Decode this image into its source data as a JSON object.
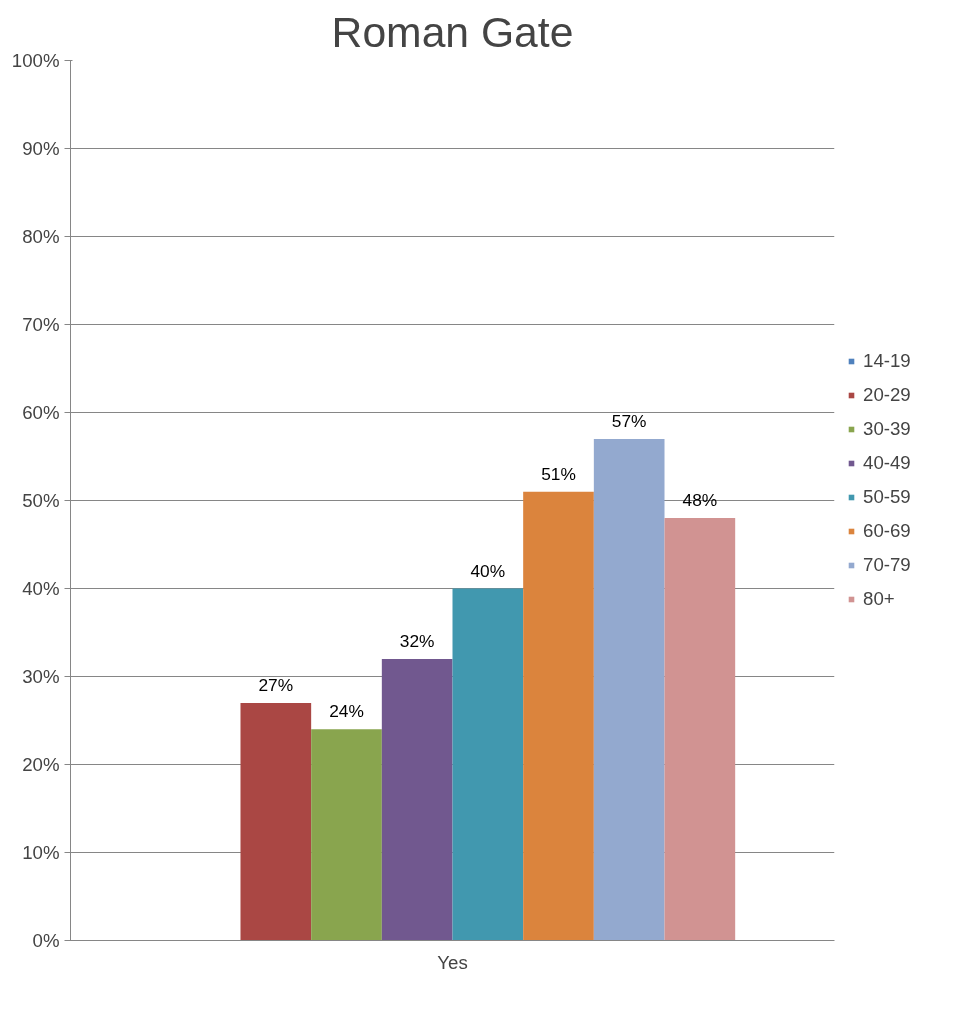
{
  "chart_data": {
    "type": "bar",
    "title": "Roman Gate",
    "categories": [
      "Yes"
    ],
    "series": [
      {
        "name": "14-19",
        "color": "#4f81bd",
        "values": [
          null
        ],
        "value_labels": [
          null
        ]
      },
      {
        "name": "20-29",
        "color": "#aa4744",
        "values": [
          27
        ],
        "value_labels": [
          "27%"
        ]
      },
      {
        "name": "30-39",
        "color": "#89a54e",
        "values": [
          24
        ],
        "value_labels": [
          "24%"
        ]
      },
      {
        "name": "40-49",
        "color": "#71588f",
        "values": [
          32
        ],
        "value_labels": [
          "32%"
        ]
      },
      {
        "name": "50-59",
        "color": "#4198af",
        "values": [
          40
        ],
        "value_labels": [
          "40%"
        ]
      },
      {
        "name": "60-69",
        "color": "#db843d",
        "values": [
          51
        ],
        "value_labels": [
          "51%"
        ]
      },
      {
        "name": "70-79",
        "color": "#93a9cf",
        "values": [
          57
        ],
        "value_labels": [
          "57%"
        ]
      },
      {
        "name": "80+",
        "color": "#d19392",
        "values": [
          48
        ],
        "value_labels": [
          "48%"
        ]
      }
    ],
    "ylim": [
      0,
      100
    ],
    "yticks": [
      {
        "value": 0,
        "label": "0%"
      },
      {
        "value": 10,
        "label": "10%"
      },
      {
        "value": 20,
        "label": "20%"
      },
      {
        "value": 30,
        "label": "30%"
      },
      {
        "value": 40,
        "label": "40%"
      },
      {
        "value": 50,
        "label": "50%"
      },
      {
        "value": 60,
        "label": "60%"
      },
      {
        "value": 70,
        "label": "70%"
      },
      {
        "value": 80,
        "label": "80%"
      },
      {
        "value": 90,
        "label": "90%"
      },
      {
        "value": 100,
        "label": "100%"
      }
    ],
    "grid": "y",
    "legend": "right"
  }
}
